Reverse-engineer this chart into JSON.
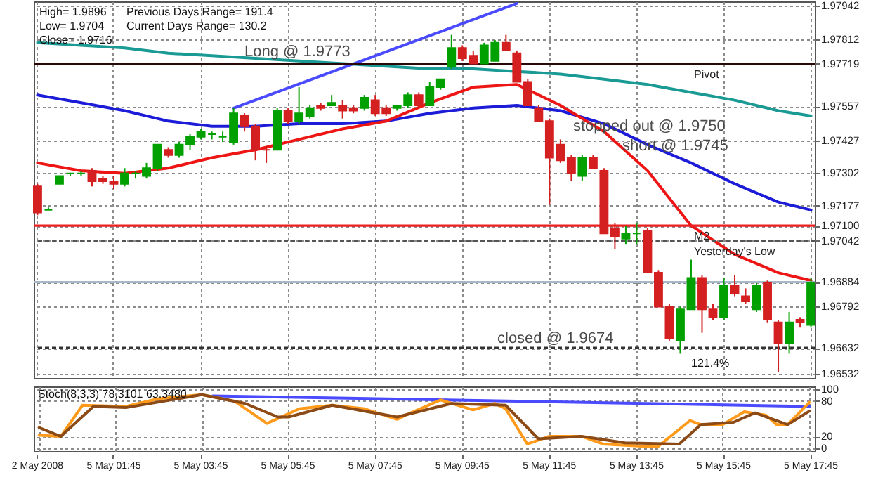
{
  "chart_data": [
    {
      "type": "candlestick",
      "categories": [
        "2 May 2008",
        null,
        null,
        null,
        null,
        null,
        null,
        "5 May 01:45",
        null,
        null,
        null,
        null,
        null,
        null,
        null,
        "5 May 03:45",
        null,
        null,
        null,
        null,
        null,
        null,
        null,
        "5 May 05:45",
        null,
        null,
        null,
        null,
        null,
        null,
        null,
        "5 May 07:45",
        null,
        null,
        null,
        null,
        null,
        null,
        null,
        "5 May 09:45",
        null,
        null,
        null,
        null,
        null,
        null,
        null,
        "5 May 11:45",
        null,
        null,
        null,
        null,
        null,
        null,
        null,
        "5 May 13:45",
        null,
        null,
        null,
        null,
        null,
        null,
        null,
        "5 May 15:45",
        null,
        null,
        null,
        null,
        null,
        null,
        null,
        "5 May 17:45"
      ],
      "ohlc": [
        [
          1.9725,
          1.9726,
          1.9714,
          1.9715
        ],
        [
          1.9716,
          1.9717,
          1.9716,
          1.9716
        ],
        [
          1.9726,
          1.9729,
          1.9726,
          1.9729
        ],
        [
          1.973,
          1.973,
          1.9729,
          1.973
        ],
        [
          1.973,
          1.9731,
          1.9729,
          1.973
        ],
        [
          1.9731,
          1.9732,
          1.9725,
          1.9727
        ],
        [
          1.9728,
          1.9729,
          1.9726,
          1.9727
        ],
        [
          1.9727,
          1.9729,
          1.9724,
          1.9726
        ],
        [
          1.9726,
          1.9732,
          1.9725,
          1.973
        ],
        [
          1.973,
          1.9731,
          1.9728,
          1.973
        ],
        [
          1.9729,
          1.9734,
          1.9728,
          1.9732
        ],
        [
          1.9732,
          1.9741,
          1.9731,
          1.9741
        ],
        [
          1.9739,
          1.974,
          1.9736,
          1.9737
        ],
        [
          1.9737,
          1.9742,
          1.9736,
          1.9741
        ],
        [
          1.9741,
          1.9745,
          1.9739,
          1.9744
        ],
        [
          1.9744,
          1.9747,
          1.9743,
          1.9746
        ],
        [
          1.9745,
          1.9746,
          1.9743,
          1.9745
        ],
        [
          1.9744,
          1.9746,
          1.9742,
          1.9744
        ],
        [
          1.9742,
          1.9755,
          1.9741,
          1.9753
        ],
        [
          1.9752,
          1.9753,
          1.9746,
          1.9748
        ],
        [
          1.9748,
          1.9749,
          1.9735,
          1.9739
        ],
        [
          1.9739,
          1.974,
          1.9734,
          1.9739
        ],
        [
          1.9739,
          1.9755,
          1.9739,
          1.9754
        ],
        [
          1.9754,
          1.9755,
          1.9749,
          1.975
        ],
        [
          1.975,
          1.9763,
          1.9749,
          1.9753
        ],
        [
          1.9752,
          1.9756,
          1.9751,
          1.9755
        ],
        [
          1.9756,
          1.9757,
          1.9754,
          1.9755
        ],
        [
          1.9756,
          1.976,
          1.9756,
          1.9757
        ],
        [
          1.9756,
          1.9758,
          1.9751,
          1.9754
        ],
        [
          1.9755,
          1.9756,
          1.9753,
          1.9754
        ],
        [
          1.9755,
          1.976,
          1.9754,
          1.9759
        ],
        [
          1.9758,
          1.976,
          1.9752,
          1.9753
        ],
        [
          1.9755,
          1.9756,
          1.9752,
          1.9753
        ],
        [
          1.9755,
          1.9756,
          1.9754,
          1.9756
        ],
        [
          1.9756,
          1.9761,
          1.9755,
          1.976
        ],
        [
          1.976,
          1.9761,
          1.9755,
          1.9756
        ],
        [
          1.9756,
          1.9765,
          1.9756,
          1.9763
        ],
        [
          1.9763,
          1.9766,
          1.9762,
          1.9766
        ],
        [
          1.9771,
          1.9783,
          1.977,
          1.9778
        ],
        [
          1.9778,
          1.9779,
          1.9773,
          1.9774
        ],
        [
          1.9775,
          1.9777,
          1.9772,
          1.9772
        ],
        [
          1.9772,
          1.978,
          1.9772,
          1.9779
        ],
        [
          1.9773,
          1.9781,
          1.9773,
          1.978
        ],
        [
          1.978,
          1.9783,
          1.9777,
          1.9777
        ],
        [
          1.9776,
          1.9777,
          1.9765,
          1.9765
        ],
        [
          1.9765,
          1.9766,
          1.9756,
          1.9756
        ],
        [
          1.9755,
          1.9756,
          1.975,
          1.975
        ],
        [
          1.975,
          1.9751,
          1.9718,
          1.9736
        ],
        [
          1.9741,
          1.9743,
          1.9734,
          1.9735
        ],
        [
          1.9736,
          1.9737,
          1.9727,
          1.973
        ],
        [
          1.9729,
          1.9737,
          1.9727,
          1.9736
        ],
        [
          1.9736,
          1.9737,
          1.9732,
          1.9732
        ],
        [
          1.9731,
          1.9732,
          1.9707,
          1.9707
        ],
        [
          1.9709,
          1.9711,
          1.9701,
          1.9706
        ],
        [
          1.9705,
          1.971,
          1.9703,
          1.9707
        ],
        [
          1.9707,
          1.9711,
          1.9703,
          1.9707
        ],
        [
          1.9708,
          1.9709,
          1.9692,
          1.9692
        ],
        [
          1.9692,
          1.9693,
          1.9679,
          1.9679
        ],
        [
          1.9679,
          1.968,
          1.9666,
          1.9667
        ],
        [
          1.9666,
          1.9679,
          1.9661,
          1.9678
        ],
        [
          1.9678,
          1.9697,
          1.9678,
          1.969
        ],
        [
          1.969,
          1.9691,
          1.9669,
          1.9678
        ],
        [
          1.9678,
          1.968,
          1.9674,
          1.9675
        ],
        [
          1.9675,
          1.969,
          1.9674,
          1.9687
        ],
        [
          1.9687,
          1.9691,
          1.9683,
          1.9684
        ],
        [
          1.9683,
          1.9686,
          1.968,
          1.9681
        ],
        [
          1.9678,
          1.9688,
          1.9677,
          1.9687
        ],
        [
          1.9688,
          1.9689,
          1.9673,
          1.9674
        ],
        [
          1.9673,
          1.9674,
          1.9654,
          1.9665
        ],
        [
          1.9665,
          1.9677,
          1.9661,
          1.9673
        ],
        [
          1.9674,
          1.9675,
          1.9671,
          1.9673
        ],
        [
          1.9672,
          1.969,
          1.9671,
          1.9688
        ]
      ],
      "colors": [
        "#d42020",
        "#00a000",
        "#00a000",
        "#00a000",
        "#00a000",
        "#d42020",
        "#d42020",
        "#d42020",
        "#00a000",
        "#00a000",
        "#00a000",
        "#00a000",
        "#d42020",
        "#00a000",
        "#00a000",
        "#00a000",
        "#00a000",
        "#00a000",
        "#00a000",
        "#d42020",
        "#d42020",
        "#d42020",
        "#00a000",
        "#d42020",
        "#00a000",
        "#00a000",
        "#d42020",
        "#00a000",
        "#d42020",
        "#d42020",
        "#00a000",
        "#d42020",
        "#d42020",
        "#00a000",
        "#00a000",
        "#d42020",
        "#00a000",
        "#00a000",
        "#00a000",
        "#d42020",
        "#d42020",
        "#00a000",
        "#00a000",
        "#d42020",
        "#d42020",
        "#d42020",
        "#d42020",
        "#d42020",
        "#d42020",
        "#d42020",
        "#00a000",
        "#d42020",
        "#d42020",
        "#d42020",
        "#00a000",
        "#00a000",
        "#d42020",
        "#d42020",
        "#d42020",
        "#00a000",
        "#00a000",
        "#d42020",
        "#d42020",
        "#00a000",
        "#d42020",
        "#d42020",
        "#00a000",
        "#d42020",
        "#d42020",
        "#00a000",
        "#d42020",
        "#00a000"
      ],
      "series": [
        {
          "type": "line",
          "color": "#1a9a94",
          "values": [
            1.978,
            null,
            null,
            null,
            1.9779,
            null,
            null,
            null,
            1.9778,
            null,
            null,
            null,
            1.9776,
            null,
            null,
            null,
            1.9775,
            null,
            null,
            null,
            1.9774,
            null,
            null,
            null,
            1.9773,
            null,
            null,
            null,
            1.9772,
            null,
            null,
            null,
            1.9771,
            null,
            null,
            null,
            1.977,
            null,
            null,
            null,
            1.977,
            null,
            null,
            null,
            1.9769,
            null,
            null,
            null,
            1.9768,
            null,
            null,
            null,
            1.9766,
            null,
            null,
            null,
            1.9764,
            null,
            null,
            null,
            1.9761,
            null,
            null,
            null,
            1.9758,
            null,
            null,
            null,
            1.9754,
            null,
            null,
            1.9752
          ]
        },
        {
          "type": "line",
          "color": "#1c1cd8",
          "values": [
            1.976,
            null,
            null,
            null,
            1.9757,
            null,
            null,
            null,
            1.9754,
            null,
            null,
            null,
            1.975,
            null,
            null,
            null,
            1.9748,
            null,
            null,
            null,
            1.9748,
            null,
            null,
            null,
            1.9749,
            null,
            null,
            null,
            1.9749,
            null,
            null,
            null,
            1.975,
            null,
            null,
            null,
            1.9753,
            null,
            null,
            null,
            1.9755,
            null,
            null,
            null,
            1.9756,
            null,
            null,
            null,
            1.9754,
            null,
            null,
            null,
            1.9749,
            null,
            null,
            null,
            1.9741,
            null,
            null,
            null,
            1.9734,
            null,
            null,
            null,
            1.9726,
            null,
            null,
            null,
            1.9719,
            null,
            null,
            1.9716
          ]
        },
        {
          "type": "line",
          "color": "#ee1515",
          "values": [
            1.9734,
            null,
            null,
            null,
            1.9731,
            null,
            null,
            null,
            1.973,
            null,
            null,
            null,
            1.9732,
            null,
            null,
            null,
            1.9736,
            null,
            null,
            null,
            1.9739,
            null,
            null,
            null,
            1.9743,
            null,
            null,
            null,
            1.9747,
            null,
            null,
            null,
            1.975,
            null,
            null,
            null,
            1.9757,
            null,
            null,
            null,
            1.9763,
            null,
            null,
            null,
            1.9764,
            null,
            null,
            null,
            1.9756,
            null,
            null,
            null,
            1.9746,
            null,
            null,
            null,
            1.9731,
            null,
            null,
            null,
            1.971,
            null,
            null,
            null,
            1.9699,
            null,
            null,
            null,
            1.9692,
            null,
            null,
            1.9689
          ]
        },
        {
          "type": "line",
          "color": "#4a4aff",
          "values": [
            null,
            null,
            null,
            null,
            null,
            null,
            null,
            null,
            null,
            null,
            null,
            null,
            null,
            null,
            null,
            null,
            null,
            null,
            1.9755,
            null,
            null,
            null,
            null,
            null,
            null,
            null,
            null,
            null,
            null,
            null,
            null,
            null,
            null,
            null,
            null,
            null,
            null,
            null,
            null,
            null,
            null,
            null,
            null,
            null,
            1.9795,
            null,
            null,
            null,
            null,
            null,
            null,
            null,
            null,
            null,
            null,
            null,
            null,
            null,
            null,
            null,
            null,
            null,
            null,
            null,
            null,
            null,
            null,
            null,
            null,
            null,
            null,
            null
          ]
        }
      ],
      "ylim": [
        1.96517,
        1.97958
      ],
      "yticks": [
        1.97942,
        1.97812,
        1.97719,
        1.97557,
        1.97427,
        1.97302,
        1.97177,
        {
          "value": 1.971,
          "label": "1.97100"
        },
        1.97042,
        1.96884,
        1.96792,
        1.96632,
        1.96532
      ],
      "grid": true,
      "ref_lines": [
        {
          "axis": "y",
          "value": 1.97719,
          "label": "Pivot",
          "color": "#2a0808"
        },
        {
          "axis": "y",
          "value": 1.971,
          "label": "M2",
          "color": "#ee2020"
        },
        {
          "axis": "y",
          "value": 1.97042,
          "label": "Yesterday's Low",
          "color": "#555555",
          "line_style": "dashed"
        },
        {
          "axis": "y",
          "value": 1.96884,
          "color": "#a9b9c9"
        },
        {
          "axis": "y",
          "value": 1.96632,
          "color": "#333333",
          "line_style": "dashed"
        }
      ],
      "annotations": [
        "High= 1.9896",
        "Previous Days Range= 191.4",
        "Low= 1.9704",
        "Current Days Range= 130.2",
        "Close= 1.9716",
        "Long @ 1.9773",
        "stopped out @ 1.9750",
        "short @ 1.9745",
        "closed @ 1.9674",
        "121.4%"
      ]
    },
    {
      "type": "line",
      "title": "Stoch(8,3,3) 78.3101 63.3480",
      "categories": [
        null,
        null,
        null,
        null,
        null,
        null,
        null,
        null,
        null,
        null,
        null,
        null,
        null,
        null,
        null,
        null,
        null,
        null,
        null,
        null,
        null,
        null,
        null,
        null,
        null,
        null,
        null,
        null,
        null,
        null,
        null,
        null,
        null,
        null,
        null,
        null,
        null,
        null,
        null,
        null,
        null,
        null,
        null,
        null,
        null,
        null,
        null,
        null,
        null,
        null,
        null,
        null,
        null,
        null,
        null,
        null,
        null,
        null,
        null,
        null,
        null,
        null,
        null,
        null,
        null,
        null,
        null,
        null,
        null,
        null,
        null,
        null
      ],
      "series": [
        {
          "color": "#4a4aff",
          "values": [
            null,
            null,
            null,
            null,
            null,
            null,
            null,
            null,
            null,
            null,
            null,
            null,
            null,
            null,
            null,
            null,
            89,
            null,
            null,
            null,
            null,
            null,
            null,
            null,
            null,
            null,
            null,
            null,
            null,
            null,
            null,
            null,
            null,
            null,
            null,
            null,
            null,
            null,
            null,
            null,
            null,
            null,
            null,
            null,
            null,
            null,
            null,
            null,
            null,
            null,
            null,
            null,
            null,
            null,
            null,
            null,
            null,
            null,
            null,
            null,
            null,
            null,
            null,
            null,
            null,
            null,
            null,
            null,
            null,
            null,
            null,
            71
          ]
        },
        {
          "color": "#ff9a1a",
          "values": [
            22,
            null,
            20,
            null,
            73,
            null,
            null,
            null,
            71,
            null,
            null,
            84,
            null,
            null,
            null,
            91,
            null,
            null,
            80,
            null,
            null,
            42,
            null,
            null,
            67,
            null,
            null,
            73,
            null,
            null,
            67,
            null,
            null,
            49,
            58,
            null,
            null,
            82,
            null,
            null,
            65,
            null,
            76,
            67,
            null,
            7,
            null,
            20,
            null,
            null,
            20,
            null,
            7,
            null,
            null,
            null,
            null,
            2,
            null,
            null,
            47,
            40,
            null,
            40,
            null,
            62,
            null,
            56,
            40,
            40,
            null,
            78
          ]
        },
        {
          "color": "#8b4a16",
          "values": [
            35,
            null,
            20,
            null,
            null,
            71,
            null,
            null,
            69,
            null,
            null,
            null,
            null,
            null,
            null,
            91,
            null,
            null,
            null,
            76,
            null,
            null,
            53,
            53,
            null,
            null,
            null,
            73,
            null,
            null,
            null,
            null,
            null,
            53,
            null,
            null,
            null,
            null,
            76,
            null,
            null,
            null,
            null,
            73,
            null,
            null,
            16,
            null,
            null,
            null,
            20,
            null,
            null,
            null,
            9,
            null,
            null,
            null,
            null,
            7,
            null,
            40,
            null,
            null,
            44,
            null,
            60,
            null,
            null,
            40,
            null,
            63
          ]
        }
      ],
      "ylim": [
        -5,
        105
      ],
      "yticks": [
        0,
        20,
        80,
        100
      ],
      "tick_labels": "y",
      "grid": true
    }
  ]
}
